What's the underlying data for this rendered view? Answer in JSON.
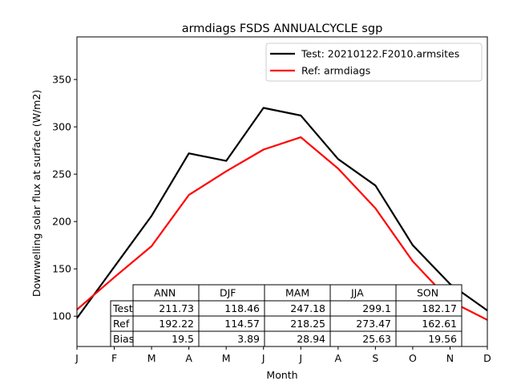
{
  "chart_data": {
    "type": "line",
    "title": "armdiags FSDS ANNUALCYCLE sgp",
    "xlabel": "Month",
    "ylabel": "Downwelling solar flux at surface (W/m2)",
    "categories": [
      "J",
      "F",
      "M",
      "A",
      "M",
      "J",
      "J",
      "A",
      "S",
      "O",
      "N",
      "D"
    ],
    "ylim": [
      68,
      395
    ],
    "yticks": [
      100,
      150,
      200,
      250,
      300,
      350
    ],
    "grid": false,
    "legend_position": "top-right",
    "series": [
      {
        "name": "Test: 20210122.F2010.armsites",
        "color": "#000000",
        "values": [
          98,
          152,
          206,
          272,
          264,
          320,
          312,
          266,
          238,
          175,
          134,
          106
        ]
      },
      {
        "name": "Ref: armdiags",
        "color": "#ff0000",
        "values": [
          107,
          141,
          174,
          228,
          253,
          276,
          289,
          256,
          214,
          158,
          116,
          96
        ]
      }
    ],
    "table": {
      "columns": [
        "ANN",
        "DJF",
        "MAM",
        "JJA",
        "SON"
      ],
      "rows": [
        {
          "label": "Test",
          "values": [
            "211.73",
            "118.46",
            "247.18",
            "299.1",
            "182.17"
          ]
        },
        {
          "label": "Ref",
          "values": [
            "192.22",
            "114.57",
            "218.25",
            "273.47",
            "162.61"
          ]
        },
        {
          "label": "Bias",
          "values": [
            "19.5",
            "3.89",
            "28.94",
            "25.63",
            "19.56"
          ]
        }
      ]
    }
  }
}
